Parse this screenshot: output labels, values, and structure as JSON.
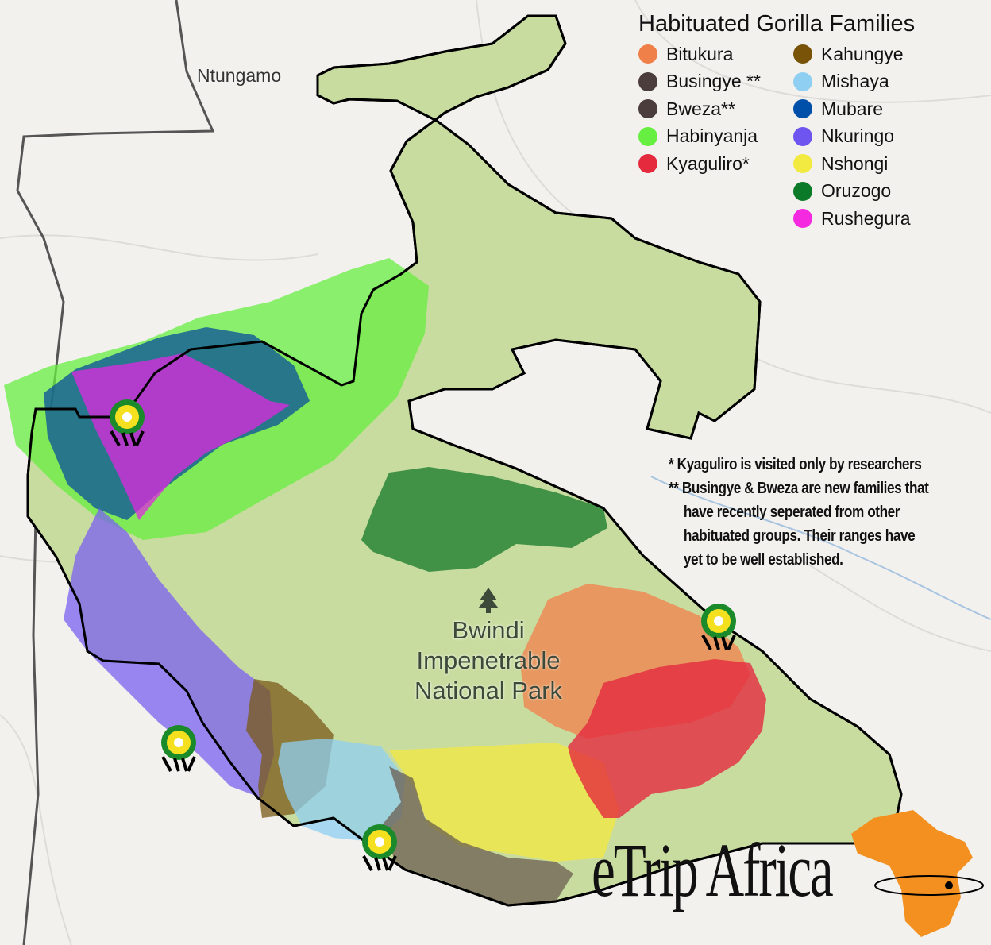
{
  "legend": {
    "title": "Habituated Gorilla Families",
    "families": [
      {
        "name": "Bitukura",
        "color": "#f0804a"
      },
      {
        "name": "Busingye **",
        "color": "#4a3d3c"
      },
      {
        "name": "Bweza**",
        "color": "#4a3d3c"
      },
      {
        "name": "Habinyanja",
        "color": "#66ee40"
      },
      {
        "name": "Kyaguliro*",
        "color": "#e52a3e"
      },
      {
        "name": "Kahungye",
        "color": "#785308"
      },
      {
        "name": "Mishaya",
        "color": "#8fcff2"
      },
      {
        "name": "Mubare",
        "color": "#0050aa"
      },
      {
        "name": "Nkuringo",
        "color": "#6e55f0"
      },
      {
        "name": "Nshongi",
        "color": "#f2ea40"
      },
      {
        "name": "Oruzogo",
        "color": "#0a7a28"
      },
      {
        "name": "Rushegura",
        "color": "#f52ae0"
      }
    ]
  },
  "notes": {
    "note1": "* Kyaguliro is visited only by researchers",
    "note2_marker": "**",
    "note2_lines": [
      "Busingye & Bweza are new families that",
      "have recently seperated from other",
      "habituated groups.  Their ranges have",
      "yet to be well established."
    ]
  },
  "map_labels": {
    "town": "Ntungamo",
    "park_lines": [
      "Bwindi",
      "Impenetrable",
      "National Park"
    ]
  },
  "logo": {
    "text": "eTrip Africa"
  },
  "icons": {
    "park": "tree-icon",
    "trailhead": "uwa-emblem-icon"
  },
  "colors": {
    "park_fill": "#c9dca0",
    "boundary": "#000000",
    "logo_orange": "#f39020"
  }
}
